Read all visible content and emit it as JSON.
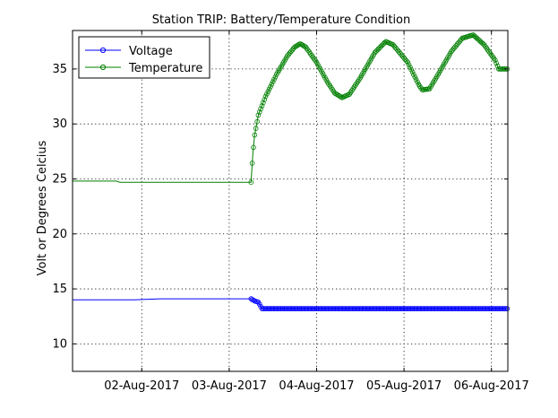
{
  "chart_data": {
    "type": "line",
    "title": "Station TRIP: Battery/Temperature Condition",
    "xlabel": "",
    "ylabel": "Volt or Degrees Celcius",
    "xlim": [
      "2017-08-01T05:00",
      "2017-08-06T04:30"
    ],
    "ylim": [
      7.5,
      38.5
    ],
    "x_ticks": [
      "02-Aug-2017",
      "03-Aug-2017",
      "04-Aug-2017",
      "05-Aug-2017",
      "06-Aug-2017"
    ],
    "y_ticks": [
      10,
      15,
      20,
      25,
      30,
      35
    ],
    "grid": true,
    "legend_position": "top-left",
    "series": [
      {
        "name": "Voltage",
        "color": "#0000ff",
        "marker": "circle",
        "points": [
          [
            "2017-08-01T05:00",
            14.0
          ],
          [
            "2017-08-01T22:00",
            14.0
          ],
          [
            "2017-08-02T05:00",
            14.1
          ],
          [
            "2017-08-03T06:00",
            14.1
          ],
          [
            "2017-08-03T06:30",
            14.0
          ],
          [
            "2017-08-03T07:00",
            13.9
          ],
          [
            "2017-08-03T08:00",
            13.8
          ],
          [
            "2017-08-03T09:00",
            13.2
          ],
          [
            "2017-08-06T04:30",
            13.2
          ]
        ]
      },
      {
        "name": "Temperature",
        "color": "#007f00",
        "marker": "circle",
        "points": [
          [
            "2017-08-01T05:00",
            24.8
          ],
          [
            "2017-08-01T17:00",
            24.8
          ],
          [
            "2017-08-01T18:00",
            24.7
          ],
          [
            "2017-08-03T06:00",
            24.7
          ],
          [
            "2017-08-03T06:30",
            27.3
          ],
          [
            "2017-08-03T07:00",
            29.0
          ],
          [
            "2017-08-03T08:00",
            30.8
          ],
          [
            "2017-08-03T10:00",
            32.5
          ],
          [
            "2017-08-03T13:00",
            34.5
          ],
          [
            "2017-08-03T16:00",
            36.2
          ],
          [
            "2017-08-03T18:00",
            37.0
          ],
          [
            "2017-08-03T19:30",
            37.3
          ],
          [
            "2017-08-03T21:00",
            37.0
          ],
          [
            "2017-08-04T00:00",
            35.6
          ],
          [
            "2017-08-04T03:00",
            33.8
          ],
          [
            "2017-08-04T05:00",
            32.8
          ],
          [
            "2017-08-04T07:00",
            32.4
          ],
          [
            "2017-08-04T09:00",
            32.7
          ],
          [
            "2017-08-04T12:00",
            34.2
          ],
          [
            "2017-08-04T16:00",
            36.5
          ],
          [
            "2017-08-04T19:00",
            37.5
          ],
          [
            "2017-08-04T21:00",
            37.2
          ],
          [
            "2017-08-05T01:00",
            35.6
          ],
          [
            "2017-08-05T04:00",
            33.6
          ],
          [
            "2017-08-05T05:00",
            33.1
          ],
          [
            "2017-08-05T07:00",
            33.2
          ],
          [
            "2017-08-05T09:00",
            34.3
          ],
          [
            "2017-08-05T13:00",
            36.6
          ],
          [
            "2017-08-05T16:00",
            37.8
          ],
          [
            "2017-08-05T19:00",
            38.1
          ],
          [
            "2017-08-05T22:00",
            37.2
          ],
          [
            "2017-08-06T01:00",
            35.8
          ],
          [
            "2017-08-06T02:00",
            35.0
          ],
          [
            "2017-08-06T04:30",
            35.0
          ]
        ]
      }
    ]
  }
}
